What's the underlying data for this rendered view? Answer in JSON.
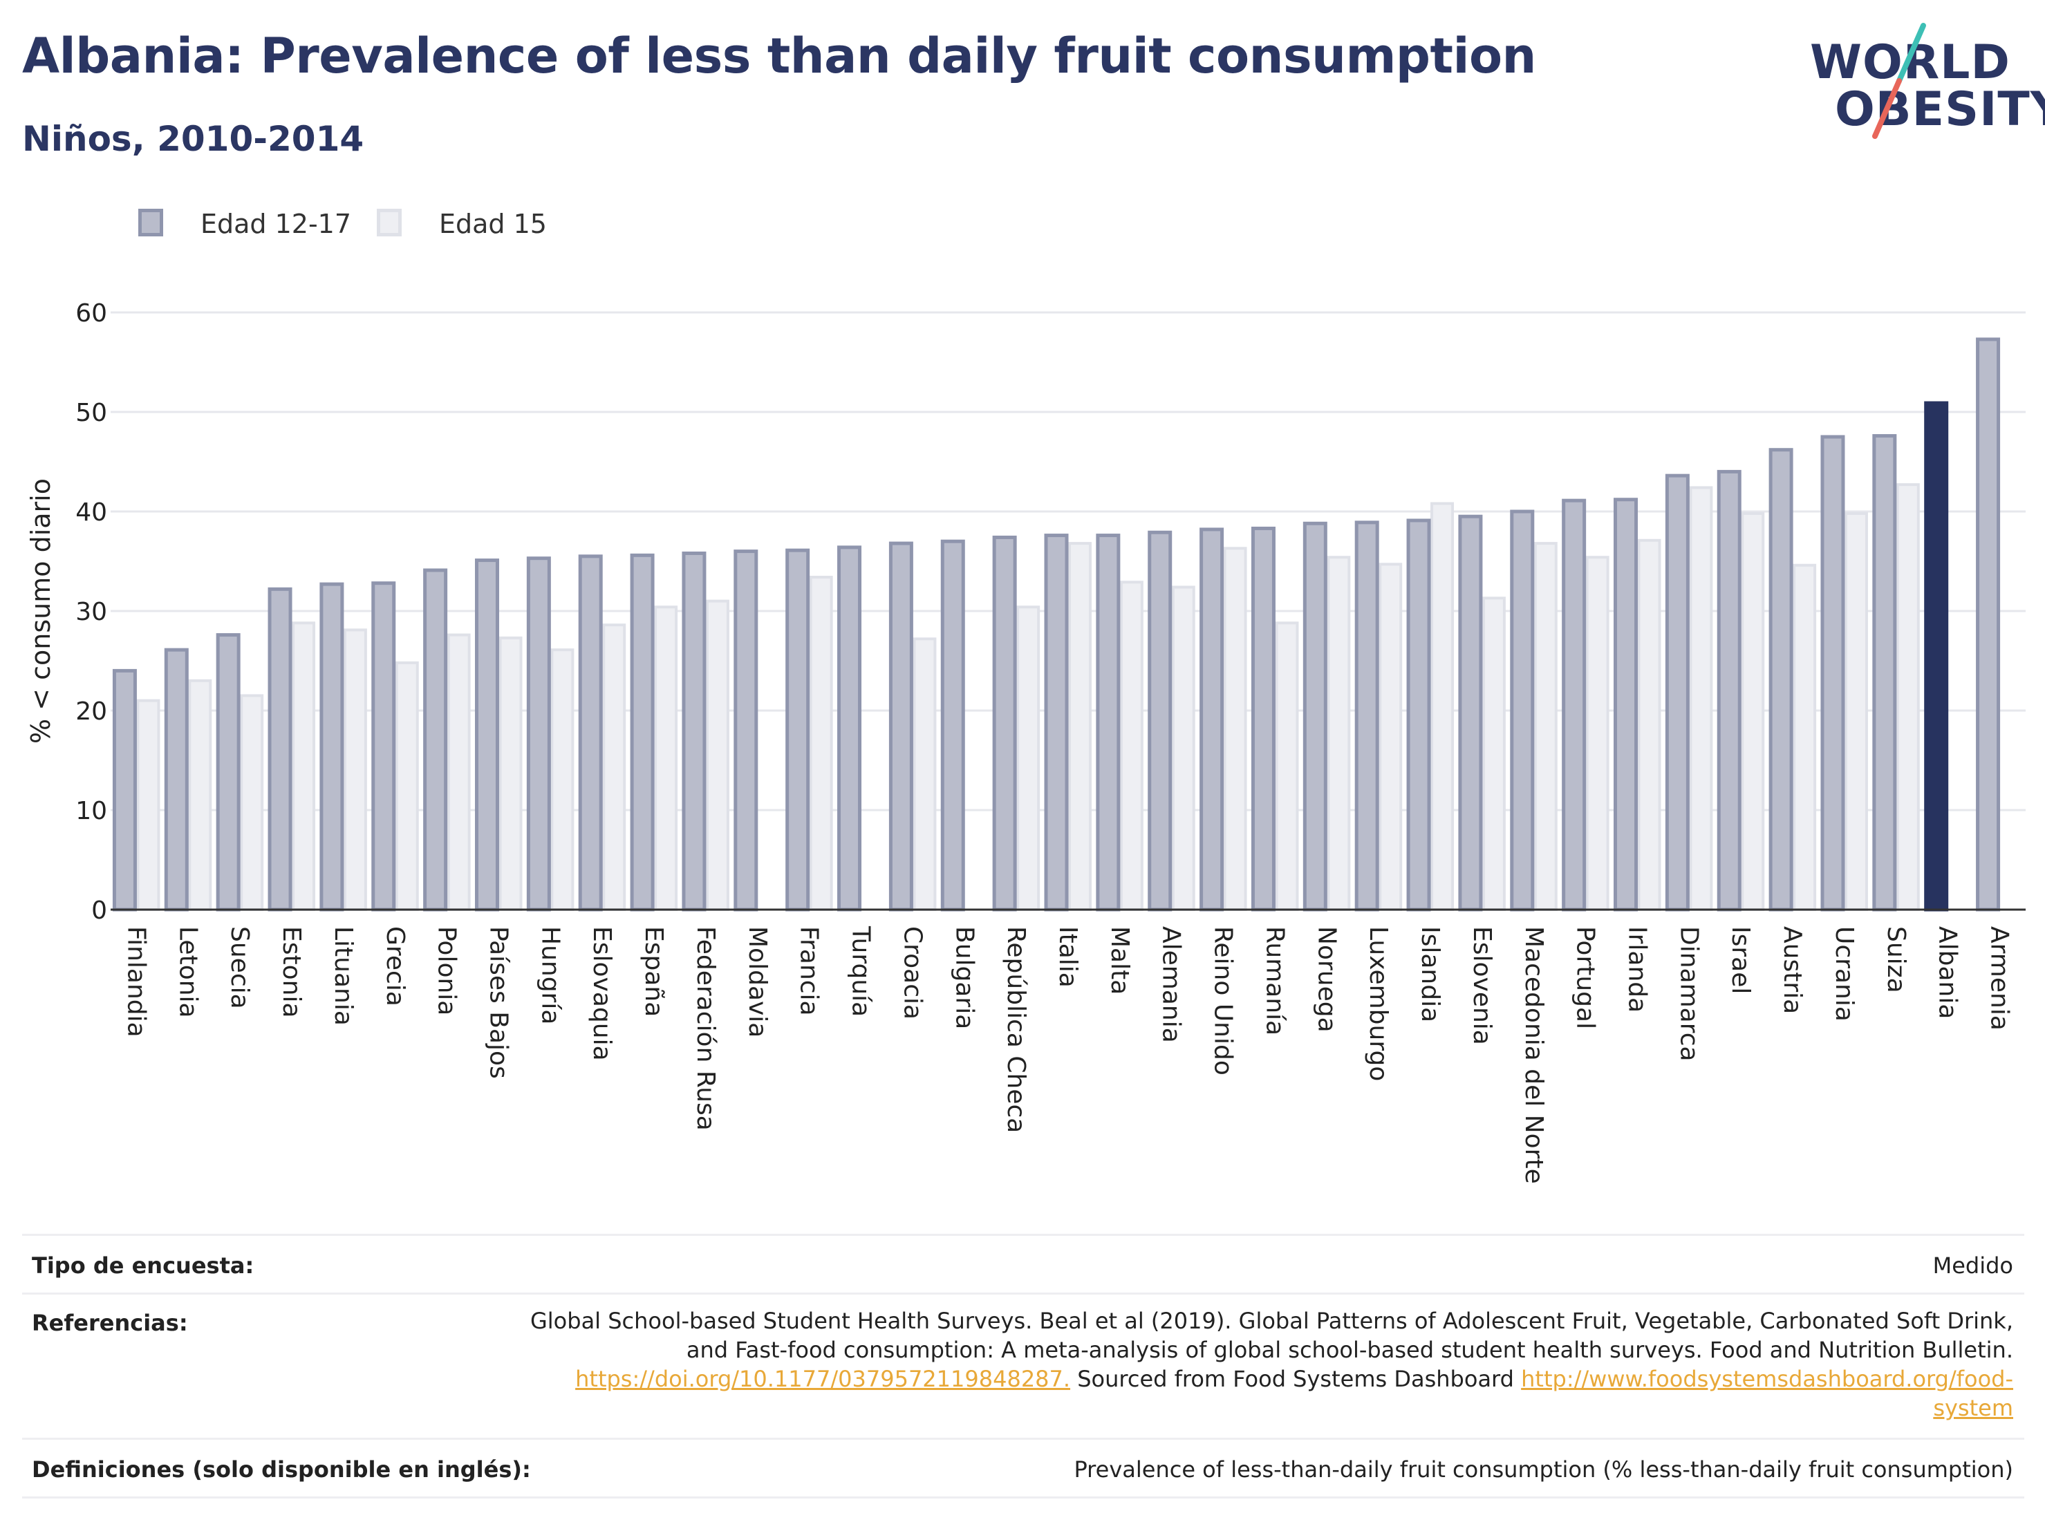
{
  "header": {
    "title": "Albania: Prevalence of less than daily fruit consumption",
    "subtitle": "Niños, 2010-2014"
  },
  "logo": {
    "line1": "WORLD",
    "line2": "OBESITY"
  },
  "colors": {
    "title": "#2b3663",
    "series_12_17_fill": "#b9bccb",
    "series_12_17_stroke": "#8f95ad",
    "series_15_fill": "#eeeff3",
    "series_15_stroke": "#dfe1e8",
    "highlight": "#27335f",
    "grid": "#e6e7ec",
    "axis": "#333333",
    "link": "#e8a838",
    "logo_slash_top": "#3dbfb5",
    "logo_slash_bottom": "#e8665a"
  },
  "legend": [
    {
      "label": "Edad 12-17"
    },
    {
      "label": "Edad 15"
    }
  ],
  "chart_data": {
    "type": "bar",
    "ylabel": "% < consumo diario",
    "ylim": [
      0,
      60
    ],
    "yticks": [
      0,
      10,
      20,
      30,
      40,
      50,
      60
    ],
    "grid": true,
    "legend_position": "top-left",
    "highlight_category": "Albania",
    "categories": [
      "Finlandia",
      "Letonia",
      "Suecia",
      "Estonia",
      "Lituania",
      "Grecia",
      "Polonia",
      "Países Bajos",
      "Hungría",
      "Eslovaquia",
      "España",
      "Federación Rusa",
      "Moldavia",
      "Francia",
      "Turquía",
      "Croacia",
      "Bulgaria",
      "República Checa",
      "Italia",
      "Malta",
      "Alemania",
      "Reino Unido",
      "Rumanía",
      "Noruega",
      "Luxemburgo",
      "Islandia",
      "Eslovenia",
      "Macedonia del Norte",
      "Portugal",
      "Irlanda",
      "Dinamarca",
      "Israel",
      "Austria",
      "Ucrania",
      "Suiza",
      "Albania",
      "Armenia"
    ],
    "series": [
      {
        "name": "Edad 12-17",
        "values": [
          24.0,
          26.1,
          27.6,
          32.2,
          32.7,
          32.8,
          34.1,
          35.1,
          35.3,
          35.5,
          35.6,
          35.8,
          36.0,
          36.1,
          36.4,
          36.8,
          37.0,
          37.4,
          37.6,
          37.6,
          37.9,
          38.2,
          38.3,
          38.8,
          38.9,
          39.1,
          39.5,
          40.0,
          41.1,
          41.2,
          43.6,
          44.0,
          46.2,
          47.5,
          47.6,
          50.9,
          57.3
        ]
      },
      {
        "name": "Edad 15",
        "values": [
          21.0,
          23.0,
          21.5,
          28.8,
          28.1,
          24.8,
          27.6,
          27.3,
          26.1,
          28.6,
          30.4,
          31.0,
          null,
          33.4,
          null,
          27.2,
          null,
          30.4,
          36.8,
          32.9,
          32.4,
          36.3,
          28.8,
          35.4,
          34.7,
          40.8,
          31.3,
          36.8,
          35.4,
          37.1,
          42.4,
          39.8,
          34.6,
          39.8,
          42.7,
          null,
          null
        ]
      }
    ]
  },
  "footer": {
    "survey_type_label": "Tipo de encuesta:",
    "survey_type_value": "Medido",
    "references_label": "Referencias:",
    "references_line1": "Global School-based Student Health Surveys. Beal et al (2019). Global Patterns of Adolescent Fruit, Vegetable, Carbonated Soft Drink,",
    "references_line2": "and Fast-food consumption: A meta-analysis of global school-based student health surveys. Food and Nutrition Bulletin.",
    "references_link1": "https://doi.org/10.1177/0379572119848287.",
    "references_mid": " Sourced from Food Systems Dashboard ",
    "references_link2a": "http://www.foodsystemsdashboard.org/food-",
    "references_link2b": "system",
    "definitions_label": "Definiciones (solo disponible en inglés):",
    "definitions_value": "Prevalence of less-than-daily fruit consumption (% less-than-daily fruit consumption)"
  }
}
